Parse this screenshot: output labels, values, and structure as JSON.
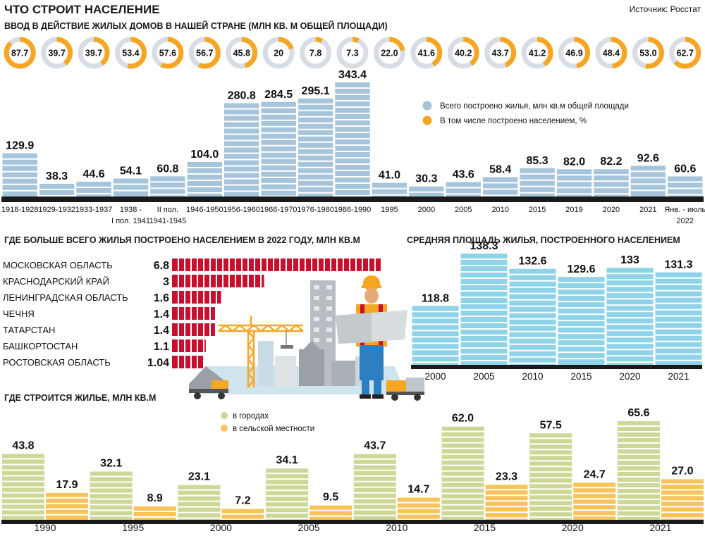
{
  "title": "ЧТО СТРОИТ НАСЕЛЕНИЕ",
  "source": "Источник: Росстат",
  "colors": {
    "blue": "#a7c5da",
    "orange": "#f5a623",
    "red": "#c8102e",
    "cyan": "#8fd3e8",
    "green": "#cfd796",
    "yellow": "#f8c35a",
    "dark": "#1a1a1a"
  },
  "chart_data": [
    {
      "type": "bar",
      "title": "ВВОД В ДЕЙСТВИЕ ЖИЛЫХ ДОМОВ В НАШЕЙ СТРАНЕ (МЛН КВ. М ОБЩЕЙ ПЛОЩАДИ)",
      "categories": [
        "1918-1928",
        "1929-1932",
        "1933-1937",
        "1938 -|I пол. 1941",
        "II пол.|1941-1945",
        "1946-1950",
        "1956-1960",
        "1966-1970",
        "1976-1980",
        "1986-1990",
        "1995",
        "2000",
        "2005",
        "2010",
        "2015",
        "2019",
        "2020",
        "2021",
        "Янв. - июль|2022"
      ],
      "series": [
        {
          "name": "Всего построено жилья, млн кв.м общей площади",
          "values": [
            129.9,
            38.3,
            44.6,
            54.1,
            60.8,
            104.0,
            280.8,
            284.5,
            295.1,
            343.4,
            41.0,
            30.3,
            43.6,
            58.4,
            85.3,
            82.0,
            82.2,
            92.6,
            60.6
          ],
          "labels": [
            "129.9",
            "38.3",
            "44.6",
            "54.1",
            "60.8",
            "104.0",
            "280.8",
            "284.5",
            "295.1",
            "343.4",
            "41.0",
            "30.3",
            "43.6",
            "58.4",
            "85.3",
            "82.0",
            "82.2",
            "92.6",
            "60.6"
          ]
        },
        {
          "name": "В том числе построено населением, %",
          "values": [
            87.7,
            39.7,
            39.7,
            53.4,
            57.6,
            56.7,
            45.8,
            20,
            7.8,
            7.3,
            22.0,
            41.6,
            40.2,
            43.7,
            41.2,
            46.9,
            48.4,
            53.0,
            62.7
          ],
          "labels": [
            "87.7",
            "39.7",
            "39.7",
            "53.4",
            "57.6",
            "56.7",
            "45.8",
            "20",
            "7.8",
            "7.3",
            "22.0",
            "41.6",
            "40.2",
            "43.7",
            "41.2",
            "46.9",
            "48.4",
            "53.0",
            "62.7"
          ]
        }
      ],
      "legend_position": "top-right"
    },
    {
      "type": "bar",
      "title": "ГДЕ БОЛЬШЕ ВСЕГО ЖИЛЬЯ ПОСТРОЕНО НАСЕЛЕНИЕМ В 2022 ГОДУ, МЛН КВ.М",
      "categories": [
        "МОСКОВСКАЯ ОБЛАСТЬ",
        "КРАСНОДАРСКИЙ КРАЙ",
        "ЛЕНИНГРАДСКАЯ ОБЛАСТЬ",
        "ЧЕЧНЯ",
        "ТАТАРСТАН",
        "БАШКОРТОСТАН",
        "РОСТОВСКАЯ ОБЛАСТЬ"
      ],
      "values": [
        6.8,
        3,
        1.6,
        1.4,
        1.4,
        1.1,
        1.04
      ],
      "labels": [
        "6.8",
        "3",
        "1.6",
        "1.4",
        "1.4",
        "1.1",
        "1.04"
      ]
    },
    {
      "type": "bar",
      "title": "СРЕДНЯЯ ПЛОЩАДЬ ЖИЛЬЯ, ПОСТРОЕННОГО НАСЕЛЕНИЕМ",
      "categories": [
        "2000",
        "2005",
        "2010",
        "2015",
        "2020",
        "2021"
      ],
      "values": [
        118.8,
        138.3,
        132.6,
        129.6,
        133,
        131.3
      ],
      "labels": [
        "118.8",
        "138.3",
        "132.6",
        "129.6",
        "133",
        "131.3"
      ]
    },
    {
      "type": "bar",
      "title": "ГДЕ СТРОИТСЯ ЖИЛЬЕ, МЛН КВ.М",
      "categories": [
        "1990",
        "1995",
        "2000",
        "2005",
        "2010",
        "2015",
        "2020",
        "2021"
      ],
      "series": [
        {
          "name": "в городах",
          "values": [
            43.8,
            32.1,
            23.1,
            34.1,
            43.7,
            62.0,
            57.5,
            65.6
          ],
          "labels": [
            "43.8",
            "32.1",
            "23.1",
            "34.1",
            "43.7",
            "62.0",
            "57.5",
            "65.6"
          ]
        },
        {
          "name": "в сельской местности",
          "values": [
            17.9,
            8.9,
            7.2,
            9.5,
            14.7,
            23.3,
            24.7,
            27.0
          ],
          "labels": [
            "17.9",
            "8.9",
            "7.2",
            "9.5",
            "14.7",
            "23.3",
            "24.7",
            "27.0"
          ]
        }
      ],
      "legend_position": "top-left"
    }
  ]
}
